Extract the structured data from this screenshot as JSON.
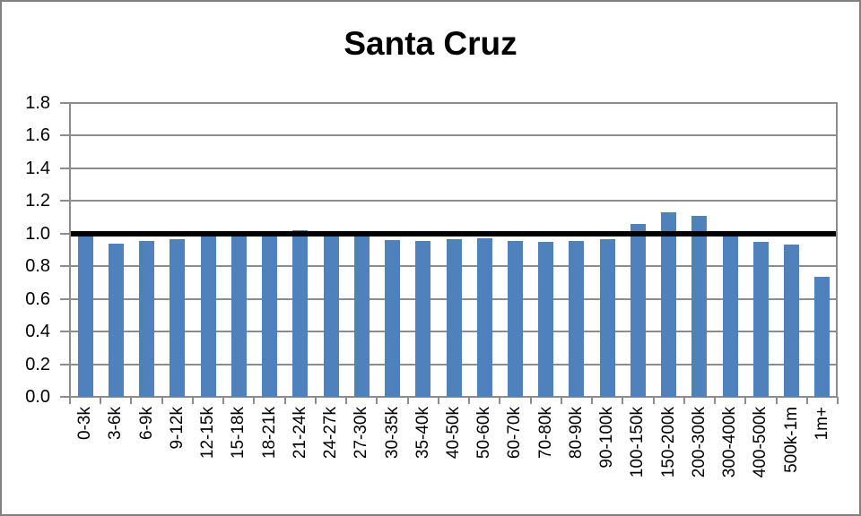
{
  "chart": {
    "title": "Santa Cruz"
  },
  "chart_data": {
    "type": "bar",
    "title": "Santa Cruz",
    "categories": [
      "0-3k",
      "3-6k",
      "6-9k",
      "9-12k",
      "12-15k",
      "15-18k",
      "18-21k",
      "21-24k",
      "24-27k",
      "27-30k",
      "30-35k",
      "35-40k",
      "40-50k",
      "50-60k",
      "60-70k",
      "70-80k",
      "80-90k",
      "90-100k",
      "100-150k",
      "150-200k",
      "200-300k",
      "300-400k",
      "400-500k",
      "500k-1m",
      "1m+"
    ],
    "values": [
      1.01,
      0.94,
      0.955,
      0.965,
      0.99,
      0.99,
      1.01,
      1.02,
      0.995,
      0.99,
      0.96,
      0.955,
      0.965,
      0.97,
      0.955,
      0.95,
      0.955,
      0.965,
      1.06,
      1.13,
      1.11,
      1.01,
      0.95,
      0.935,
      0.735
    ],
    "xlabel": "",
    "ylabel": "",
    "ylim": [
      0,
      1.8
    ],
    "ytick_step": 0.2,
    "ytick_labels": [
      "0.0",
      "0.2",
      "0.4",
      "0.6",
      "0.8",
      "1.0",
      "1.2",
      "1.4",
      "1.6",
      "1.8"
    ],
    "reference_line_y": 1.0,
    "grid": true,
    "legend_position": "none",
    "colors": {
      "bar": "#4F81BD",
      "gridline": "#8C8C8C",
      "axis": "#808080",
      "reference_line": "#000000",
      "text": "#000000",
      "background": "#FFFFFF",
      "frame_border": "#808080"
    }
  }
}
